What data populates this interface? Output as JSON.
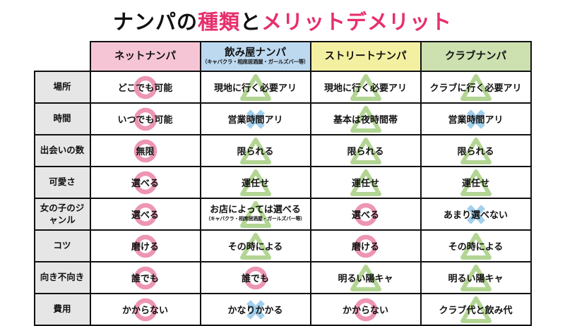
{
  "title": {
    "segments": [
      {
        "text": "ナンパの",
        "accent": false
      },
      {
        "text": "種類",
        "accent": true
      },
      {
        "text": "と",
        "accent": false
      },
      {
        "text": "メリットデメリット",
        "accent": true
      }
    ]
  },
  "colors": {
    "accent_pink": "#e62e6b",
    "mark_circle": "#e0407a",
    "mark_triangle": "#76b43e",
    "mark_cross": "#55a8dd",
    "row_header_bg": "#e6e6e6",
    "column_bg": [
      "#f6c5d5",
      "#bdd9f0",
      "#f4f0a2",
      "#cce0b0"
    ],
    "border": "#111111"
  },
  "chart_data": {
    "type": "table",
    "title": "ナンパの種類とメリットデメリット",
    "columns": [
      {
        "label": "ネットナンパ",
        "sub": ""
      },
      {
        "label": "飲み屋ナンパ",
        "sub": "（キャバクラ・相席居酒屋・ガールズバー等）"
      },
      {
        "label": "ストリートナンパ",
        "sub": ""
      },
      {
        "label": "クラブナンパ",
        "sub": ""
      }
    ],
    "mark_legend": {
      "circle": "◯",
      "triangle": "△",
      "cross": "✕"
    },
    "rows": [
      {
        "header": "場所",
        "cells": [
          {
            "text": "どこでも可能",
            "mark": "circle"
          },
          {
            "text": "現地に行く必要アリ",
            "mark": "triangle"
          },
          {
            "text": "現地に行く必要アリ",
            "mark": "triangle"
          },
          {
            "text": "クラブに行く必要アリ",
            "mark": "triangle"
          }
        ]
      },
      {
        "header": "時間",
        "cells": [
          {
            "text": "いつでも可能",
            "mark": "circle"
          },
          {
            "text": "営業時間アリ",
            "mark": "cross"
          },
          {
            "text": "基本は夜時間帯",
            "mark": "triangle"
          },
          {
            "text": "営業時間アリ",
            "mark": "cross"
          }
        ]
      },
      {
        "header": "出会いの数",
        "cells": [
          {
            "text": "無限",
            "mark": "circle"
          },
          {
            "text": "限られる",
            "mark": "triangle"
          },
          {
            "text": "限られる",
            "mark": "triangle"
          },
          {
            "text": "限られる",
            "mark": "triangle"
          }
        ]
      },
      {
        "header": "可愛さ",
        "cells": [
          {
            "text": "選べる",
            "mark": "circle"
          },
          {
            "text": "運任せ",
            "mark": "triangle"
          },
          {
            "text": "運任せ",
            "mark": "triangle"
          },
          {
            "text": "運任せ",
            "mark": "triangle"
          }
        ]
      },
      {
        "header": "女の子のジャンル",
        "cells": [
          {
            "text": "選べる",
            "mark": "circle"
          },
          {
            "text": "お店によっては選べる",
            "sub": "（キャバクラ・相席居酒屋・ガールズバー等）",
            "mark": "triangle"
          },
          {
            "text": "選べる",
            "mark": "circle"
          },
          {
            "text": "あまり選べない",
            "mark": "cross"
          }
        ]
      },
      {
        "header": "コツ",
        "cells": [
          {
            "text": "磨ける",
            "mark": "circle"
          },
          {
            "text": "その時による",
            "mark": "triangle"
          },
          {
            "text": "磨ける",
            "mark": "circle"
          },
          {
            "text": "その時による",
            "mark": "triangle"
          }
        ]
      },
      {
        "header": "向き不向き",
        "cells": [
          {
            "text": "誰でも",
            "mark": "circle"
          },
          {
            "text": "誰でも",
            "mark": "circle"
          },
          {
            "text": "明るい陽キャ",
            "mark": "triangle"
          },
          {
            "text": "明るい陽キャ",
            "mark": "triangle"
          }
        ]
      },
      {
        "header": "費用",
        "cells": [
          {
            "text": "かからない",
            "mark": "circle"
          },
          {
            "text": "かなりかかる",
            "mark": "cross"
          },
          {
            "text": "かからない",
            "mark": "circle"
          },
          {
            "text": "クラブ代と飲み代",
            "mark": "triangle"
          }
        ]
      }
    ]
  }
}
